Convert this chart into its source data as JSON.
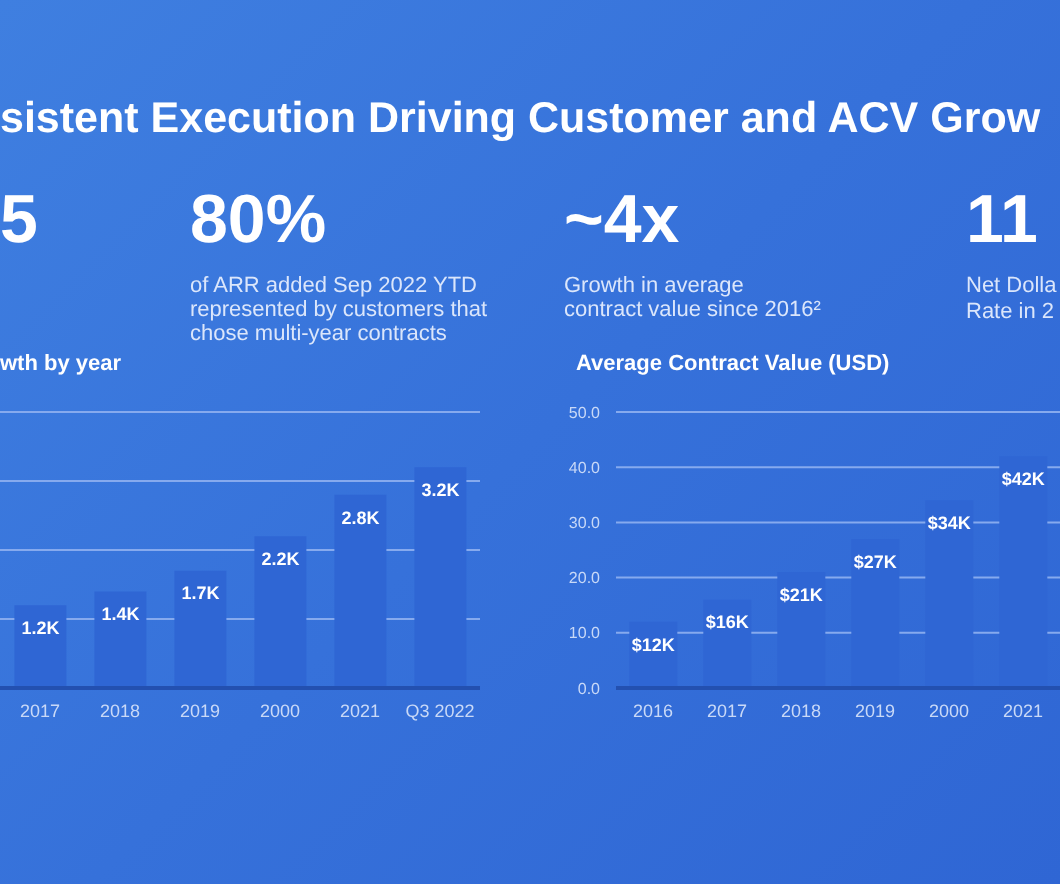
{
  "chart_data": [
    {
      "type": "other",
      "title": "sistent Execution Driving Customer and ACV Grow",
      "annotations": [
        "5",
        "80%",
        "of ARR added Sep 2022 YTD represented by customers that chose multi-year contracts",
        "~4x",
        "Growth in average contract value since 2016²",
        "11",
        "Net Dolla",
        "Rate in 2"
      ]
    },
    {
      "type": "bar",
      "title": "wth by year",
      "categories": [
        "2017",
        "2018",
        "2019",
        "2000",
        "2021",
        "Q3 2022"
      ],
      "values": [
        1.2,
        1.4,
        1.7,
        2.2,
        2.8,
        3.2
      ],
      "value_labels": [
        "1.2K",
        "1.4K",
        "1.7K",
        "2.2K",
        "2.8K",
        "3.2K"
      ],
      "color": "#2f66d4",
      "ylim": [
        0,
        4
      ],
      "yticks": [
        {
          "value": 1,
          "label": null
        },
        {
          "value": 2,
          "label": null
        },
        {
          "value": 3,
          "label": null
        },
        {
          "value": 4,
          "label": null
        }
      ],
      "grid": "y",
      "tick_labels": "x"
    },
    {
      "type": "bar",
      "title": "Average Contract Value (USD)",
      "categories": [
        "2016",
        "2017",
        "2018",
        "2019",
        "2000",
        "2021"
      ],
      "values": [
        12,
        16,
        21,
        27,
        34,
        42
      ],
      "value_labels": [
        "$12K",
        "$16K",
        "$21K",
        "$27K",
        "$34K",
        "$42K"
      ],
      "color": "#2f66d4",
      "ylim": [
        0,
        50
      ],
      "yticks": [
        {
          "value": 0,
          "label": "0.0"
        },
        {
          "value": 10,
          "label": "10.0"
        },
        {
          "value": 20,
          "label": "20.0"
        },
        {
          "value": 30,
          "label": "30.0"
        },
        {
          "value": 40,
          "label": "40.0"
        },
        {
          "value": 50,
          "label": "50.0"
        }
      ],
      "grid": "y"
    }
  ]
}
